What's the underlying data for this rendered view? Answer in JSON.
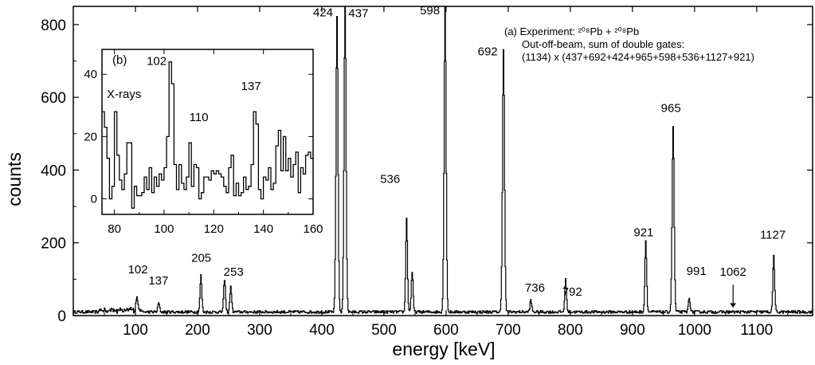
{
  "chart_data": [
    {
      "id": "main",
      "type": "line",
      "xlabel": "energy [keV]",
      "ylabel": "counts",
      "xlim": [
        0,
        1190
      ],
      "ylim": [
        0,
        850
      ],
      "xticks": [
        100,
        200,
        300,
        400,
        500,
        600,
        700,
        800,
        900,
        1000,
        1100
      ],
      "yticks": [
        0,
        200,
        400,
        600,
        800
      ],
      "annotation_lines": [
        "(a) Experiment: ²⁰⁸Pb + ²⁰⁸Pb",
        "Out-off-beam, sum of double gates:",
        "(1134) x (437+692+424+965+598+536+1127+921)"
      ],
      "peaks": [
        {
          "energy": 102,
          "counts": 42,
          "label": "102"
        },
        {
          "energy": 137,
          "counts": 25,
          "label": "137"
        },
        {
          "energy": 205,
          "counts": 100,
          "label": "205"
        },
        {
          "energy": 243,
          "counts": 90,
          "label": ""
        },
        {
          "energy": 253,
          "counts": 68,
          "label": "253"
        },
        {
          "energy": 424,
          "counts": 815,
          "label": "424"
        },
        {
          "energy": 437,
          "counts": 850,
          "label": "437"
        },
        {
          "energy": 536,
          "counts": 255,
          "label": "536"
        },
        {
          "energy": 545,
          "counts": 110,
          "label": ""
        },
        {
          "energy": 598,
          "counts": 840,
          "label": "598"
        },
        {
          "energy": 692,
          "counts": 725,
          "label": "692"
        },
        {
          "energy": 736,
          "counts": 32,
          "label": "736"
        },
        {
          "energy": 792,
          "counts": 88,
          "label": "792"
        },
        {
          "energy": 921,
          "counts": 195,
          "label": "921"
        },
        {
          "energy": 965,
          "counts": 510,
          "label": "965"
        },
        {
          "energy": 991,
          "counts": 38,
          "label": "991"
        },
        {
          "energy": 1127,
          "counts": 155,
          "label": "1127"
        }
      ],
      "arrow_marker": {
        "energy": 1062,
        "label": "1062"
      }
    },
    {
      "id": "inset",
      "type": "line",
      "title": "(b)",
      "xlim": [
        75,
        160
      ],
      "ylim": [
        -5,
        48
      ],
      "xticks": [
        80,
        100,
        120,
        140,
        160
      ],
      "yticks": [
        0,
        20,
        40
      ],
      "region_label": "X-rays",
      "peaks": [
        {
          "energy": 102,
          "counts": 44,
          "label": "102"
        },
        {
          "energy": 110,
          "counts": 18,
          "label": "110"
        },
        {
          "energy": 137,
          "counts": 28,
          "label": "137"
        }
      ],
      "bins": [
        [
          75,
          28
        ],
        [
          76,
          23
        ],
        [
          77,
          13
        ],
        [
          78,
          0
        ],
        [
          79,
          4
        ],
        [
          80,
          28
        ],
        [
          81,
          14
        ],
        [
          82,
          6
        ],
        [
          83,
          3
        ],
        [
          84,
          8
        ],
        [
          85,
          18
        ],
        [
          86,
          18
        ],
        [
          87,
          -3
        ],
        [
          88,
          4
        ],
        [
          89,
          1
        ],
        [
          90,
          1
        ],
        [
          91,
          2
        ],
        [
          92,
          7
        ],
        [
          93,
          3
        ],
        [
          94,
          10
        ],
        [
          95,
          2
        ],
        [
          96,
          7
        ],
        [
          97,
          4
        ],
        [
          98,
          8
        ],
        [
          99,
          6
        ],
        [
          100,
          10
        ],
        [
          101,
          20
        ],
        [
          102,
          44
        ],
        [
          103,
          37
        ],
        [
          104,
          11
        ],
        [
          105,
          3
        ],
        [
          106,
          11
        ],
        [
          107,
          5
        ],
        [
          108,
          3
        ],
        [
          109,
          7
        ],
        [
          110,
          18
        ],
        [
          111,
          4
        ],
        [
          112,
          11
        ],
        [
          113,
          10
        ],
        [
          114,
          0
        ],
        [
          115,
          2
        ],
        [
          116,
          7
        ],
        [
          117,
          7
        ],
        [
          118,
          6
        ],
        [
          119,
          9
        ],
        [
          120,
          8
        ],
        [
          121,
          9
        ],
        [
          122,
          8
        ],
        [
          123,
          7
        ],
        [
          124,
          4
        ],
        [
          125,
          2
        ],
        [
          126,
          10
        ],
        [
          127,
          14
        ],
        [
          128,
          1
        ],
        [
          129,
          5
        ],
        [
          130,
          1
        ],
        [
          131,
          2
        ],
        [
          132,
          7
        ],
        [
          133,
          3
        ],
        [
          134,
          4
        ],
        [
          135,
          11
        ],
        [
          136,
          28
        ],
        [
          137,
          24
        ],
        [
          138,
          3
        ],
        [
          139,
          0
        ],
        [
          140,
          7
        ],
        [
          141,
          6
        ],
        [
          142,
          10
        ],
        [
          143,
          3
        ],
        [
          144,
          5
        ],
        [
          145,
          17
        ],
        [
          146,
          22
        ],
        [
          147,
          9
        ],
        [
          148,
          20
        ],
        [
          149,
          9
        ],
        [
          150,
          13
        ],
        [
          151,
          7
        ],
        [
          152,
          11
        ],
        [
          153,
          15
        ],
        [
          154,
          2
        ],
        [
          155,
          10
        ],
        [
          156,
          8
        ],
        [
          157,
          14
        ],
        [
          158,
          15
        ],
        [
          159,
          13
        ],
        [
          160,
          13
        ]
      ]
    }
  ]
}
